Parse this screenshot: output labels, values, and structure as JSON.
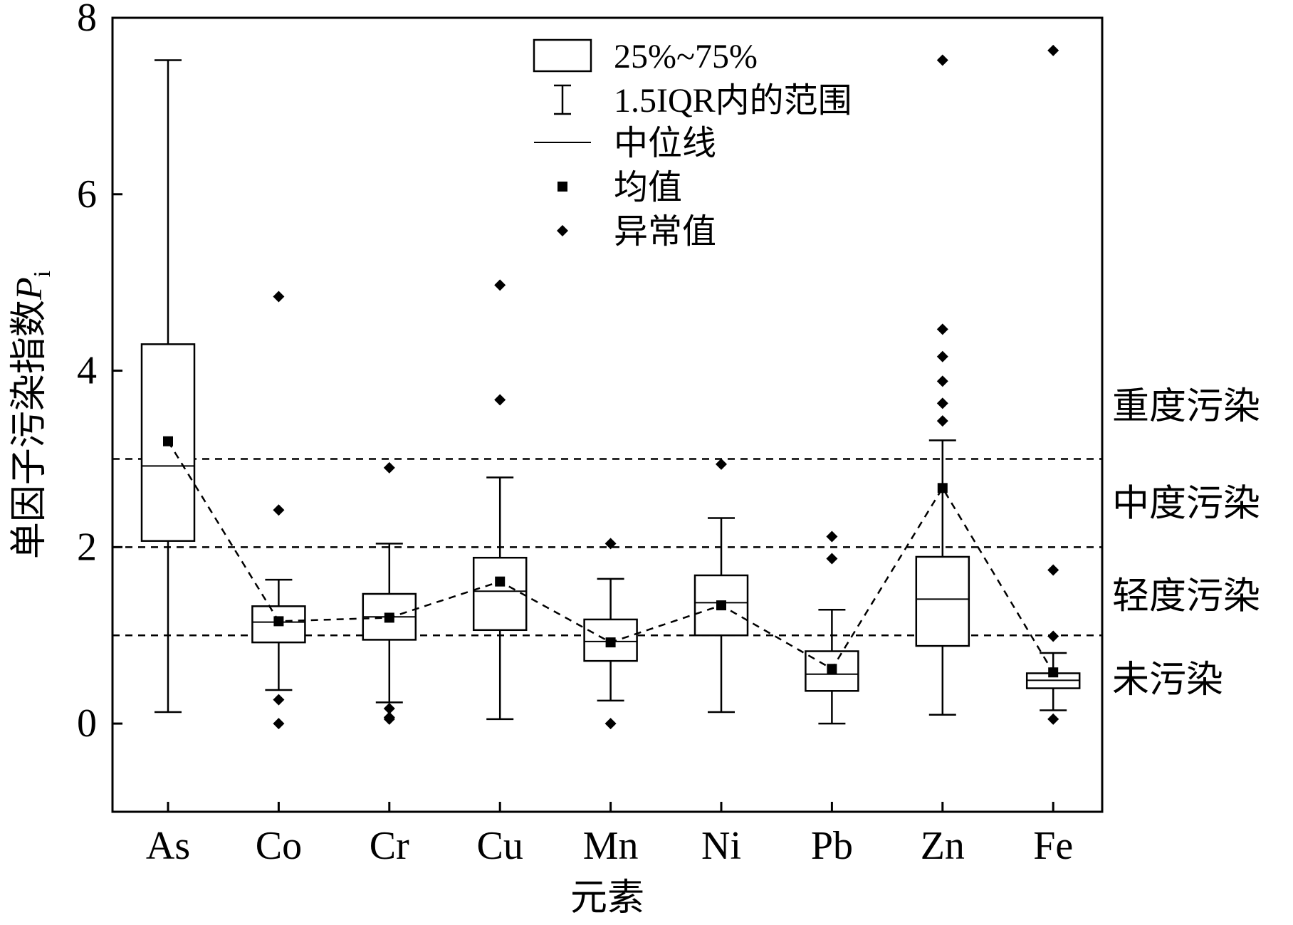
{
  "chart_data": {
    "type": "box",
    "xlabel": "元素",
    "ylabel": "单因子污染指数",
    "ylabel_symbol": "P",
    "ylabel_subscript": "i",
    "ylim": [
      -1,
      8
    ],
    "yticks": [
      0,
      2,
      4,
      6,
      8
    ],
    "categories": [
      "As",
      "Co",
      "Cr",
      "Cu",
      "Mn",
      "Ni",
      "Pb",
      "Zn",
      "Fe"
    ],
    "boxes": [
      {
        "category": "As",
        "whisker_low": 0.13,
        "q1": 2.07,
        "median": 2.92,
        "q3": 4.3,
        "whisker_high": 7.52,
        "mean": 3.2,
        "outliers": []
      },
      {
        "category": "Co",
        "whisker_low": 0.38,
        "q1": 0.92,
        "median": 1.15,
        "q3": 1.33,
        "whisker_high": 1.63,
        "mean": 1.16,
        "outliers": [
          4.84,
          2.42,
          0.27,
          0.0
        ]
      },
      {
        "category": "Cr",
        "whisker_low": 0.24,
        "q1": 0.95,
        "median": 1.21,
        "q3": 1.47,
        "whisker_high": 2.04,
        "mean": 1.2,
        "outliers": [
          2.9,
          0.17,
          0.07,
          0.05
        ]
      },
      {
        "category": "Cu",
        "whisker_low": 0.05,
        "q1": 1.06,
        "median": 1.5,
        "q3": 1.88,
        "whisker_high": 2.79,
        "mean": 1.61,
        "outliers": [
          4.97,
          3.67
        ]
      },
      {
        "category": "Mn",
        "whisker_low": 0.26,
        "q1": 0.71,
        "median": 0.93,
        "q3": 1.18,
        "whisker_high": 1.64,
        "mean": 0.92,
        "outliers": [
          2.04,
          0.0
        ]
      },
      {
        "category": "Ni",
        "whisker_low": 0.13,
        "q1": 1.0,
        "median": 1.37,
        "q3": 1.68,
        "whisker_high": 2.33,
        "mean": 1.34,
        "outliers": [
          2.94
        ]
      },
      {
        "category": "Pb",
        "whisker_low": 0.0,
        "q1": 0.37,
        "median": 0.56,
        "q3": 0.82,
        "whisker_high": 1.29,
        "mean": 0.62,
        "outliers": [
          2.12,
          1.87
        ]
      },
      {
        "category": "Zn",
        "whisker_low": 0.1,
        "q1": 0.88,
        "median": 1.41,
        "q3": 1.89,
        "whisker_high": 3.21,
        "mean": 2.67,
        "outliers": [
          7.52,
          4.47,
          4.16,
          3.88,
          3.63,
          3.43
        ]
      },
      {
        "category": "Fe",
        "whisker_low": 0.15,
        "q1": 0.4,
        "median": 0.49,
        "q3": 0.57,
        "whisker_high": 0.8,
        "mean": 0.58,
        "outliers": [
          7.63,
          1.74,
          0.99,
          0.05
        ]
      }
    ],
    "threshold_lines": [
      1,
      2,
      3
    ],
    "level_labels": [
      {
        "text": "重度污染",
        "y": 3.6
      },
      {
        "text": "中度污染",
        "y": 2.5
      },
      {
        "text": "轻度污染",
        "y": 1.45
      },
      {
        "text": "未污染",
        "y": 0.5
      }
    ],
    "legend": {
      "position": "top-center",
      "items": [
        {
          "symbol": "box",
          "label": "25%~75%"
        },
        {
          "symbol": "whisker",
          "label": "1.5IQR内的范围"
        },
        {
          "symbol": "line",
          "label": "中位线"
        },
        {
          "symbol": "square",
          "label": "均值"
        },
        {
          "symbol": "diamond",
          "label": "异常值"
        }
      ]
    },
    "grid": false
  }
}
